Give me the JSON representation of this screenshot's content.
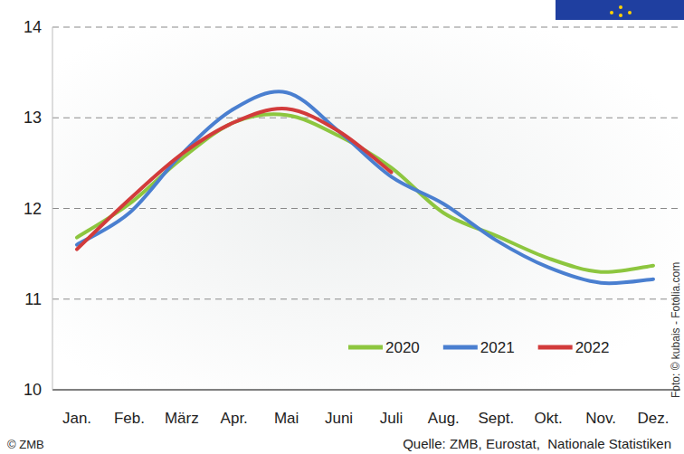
{
  "chart_data": {
    "type": "line",
    "categories": [
      "Jan.",
      "Feb.",
      "März",
      "Apr.",
      "Mai",
      "Juni",
      "Juli",
      "Aug.",
      "Sept.",
      "Okt.",
      "Nov.",
      "Dez."
    ],
    "series": [
      {
        "name": "2020",
        "color": "#8dc63f",
        "values": [
          11.68,
          12.05,
          12.55,
          12.95,
          13.03,
          12.8,
          12.45,
          11.95,
          11.7,
          11.45,
          11.3,
          11.37
        ]
      },
      {
        "name": "2021",
        "color": "#4a7fd0",
        "values": [
          11.6,
          11.95,
          12.6,
          13.1,
          13.28,
          12.85,
          12.35,
          12.05,
          11.65,
          11.35,
          11.18,
          11.22
        ]
      },
      {
        "name": "2022",
        "color": "#d23b3b",
        "values": [
          11.55,
          12.1,
          12.6,
          12.95,
          13.1,
          12.85,
          12.4,
          null,
          null,
          null,
          null,
          null
        ]
      }
    ],
    "ylim": [
      10,
      14
    ],
    "yticks": [
      10,
      11,
      12,
      13,
      14
    ],
    "grid": true,
    "legend": "bottom-right",
    "annotations": [
      "© ZMB",
      "Quelle: ZMB, Eurostat,  Nationale Statistiken",
      "Foto: © kubais - Fotolia.com"
    ]
  }
}
